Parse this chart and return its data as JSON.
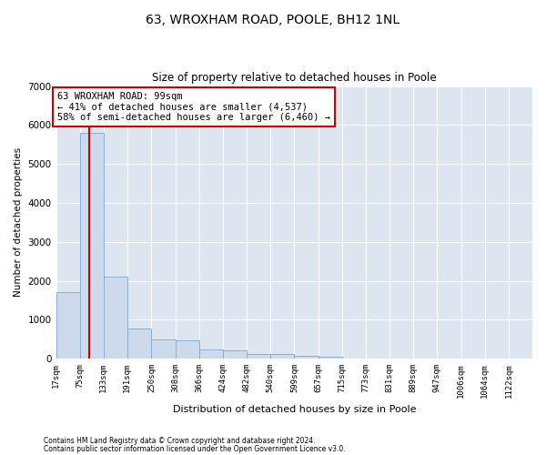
{
  "title": "63, WROXHAM ROAD, POOLE, BH12 1NL",
  "subtitle": "Size of property relative to detached houses in Poole",
  "xlabel": "Distribution of detached houses by size in Poole",
  "ylabel": "Number of detached properties",
  "footnote1": "Contains HM Land Registry data © Crown copyright and database right 2024.",
  "footnote2": "Contains public sector information licensed under the Open Government Licence v3.0.",
  "property_size": 99,
  "property_label": "63 WROXHAM ROAD: 99sqm",
  "annotation_line1": "← 41% of detached houses are smaller (4,537)",
  "annotation_line2": "58% of semi-detached houses are larger (6,460) →",
  "bar_edges": [
    17,
    75,
    133,
    191,
    250,
    308,
    366,
    424,
    482,
    540,
    599,
    657,
    715,
    773,
    831,
    889,
    947,
    1006,
    1064,
    1122,
    1180
  ],
  "bar_heights": [
    1700,
    5800,
    2100,
    780,
    490,
    470,
    230,
    220,
    115,
    110,
    70,
    60,
    0,
    0,
    0,
    0,
    0,
    0,
    0,
    0
  ],
  "bar_color": "#ccdaec",
  "bar_edge_color": "#8aafd4",
  "vline_color": "#cc0000",
  "annotation_box_color": "#cc0000",
  "bg_color": "#dde6f0",
  "ylim": [
    0,
    7000
  ],
  "xlim": [
    17,
    1180
  ],
  "title_fontsize": 10,
  "subtitle_fontsize": 8.5,
  "ylabel_fontsize": 7.5,
  "xlabel_fontsize": 8,
  "tick_fontsize": 6.5,
  "ytick_fontsize": 7.5,
  "footnote_fontsize": 5.5,
  "annotation_fontsize": 7.5
}
